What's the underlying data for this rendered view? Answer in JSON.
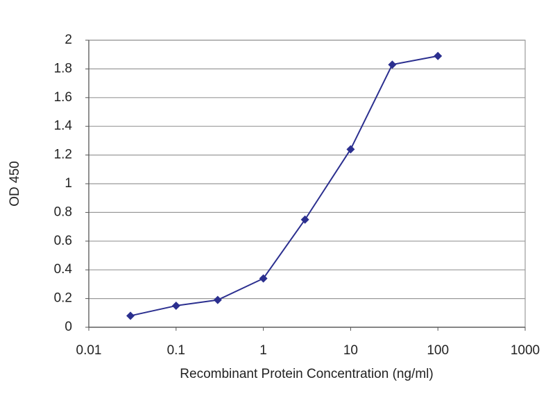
{
  "chart_data": {
    "type": "line",
    "x_label": "Recombinant Protein Concentration (ng/ml)",
    "y_label": "OD 450",
    "x": [
      0.03,
      0.1,
      0.3,
      1,
      3,
      10,
      30,
      100
    ],
    "series": [
      {
        "name": "OD 450",
        "color": "#2b2f8f",
        "values": [
          0.08,
          0.15,
          0.19,
          0.34,
          0.75,
          1.24,
          1.83,
          1.89
        ]
      }
    ],
    "xlim": [
      0.01,
      1000
    ],
    "xticks": [
      0.01,
      0.1,
      1,
      10,
      100,
      1000
    ],
    "xscale": "log",
    "ylim": [
      0,
      2
    ],
    "yticks": [
      0,
      0.2,
      0.4,
      0.6,
      0.8,
      1,
      1.2,
      1.4,
      1.6,
      1.8,
      2
    ],
    "grid": true
  }
}
